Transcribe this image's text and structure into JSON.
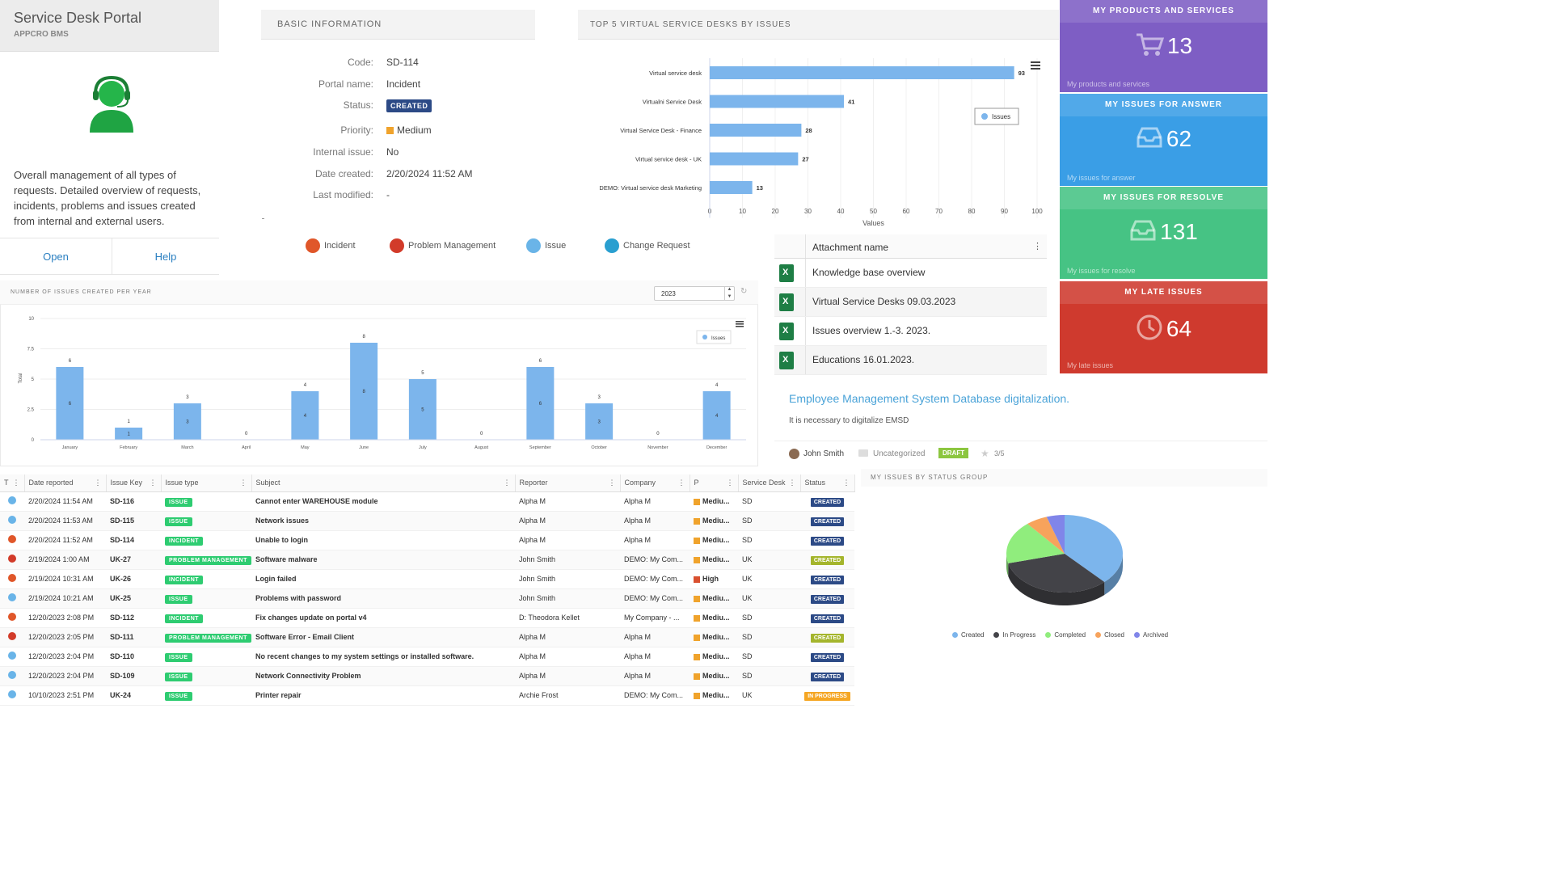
{
  "portal": {
    "title": "Service Desk Portal",
    "subtitle": "APPCRO BMS",
    "description": "Overall management of all types of requests. Detailed overview of requests, incidents, problems and issues created from internal and external users.",
    "open_label": "Open",
    "help_label": "Help",
    "avatar_icon": "support-agent-icon"
  },
  "basic_info": {
    "heading": "BASIC INFORMATION",
    "fields": [
      {
        "label": "Code:",
        "value": "SD-114"
      },
      {
        "label": "Portal name:",
        "value": "Incident"
      },
      {
        "label": "Status:",
        "value": "CREATED"
      },
      {
        "label": "Priority:",
        "value": "Medium"
      },
      {
        "label": "Internal issue:",
        "value": "No"
      },
      {
        "label": "Date created:",
        "value": "2/20/2024 11:52 AM"
      },
      {
        "label": "Last modified:",
        "value": "-"
      }
    ]
  },
  "quick_links": [
    {
      "label": "Incident",
      "icon": "incident-icon",
      "color": "#e0572a"
    },
    {
      "label": "Problem Management",
      "icon": "problem-icon",
      "color": "#d23b2a"
    },
    {
      "label": "Issue",
      "icon": "issue-icon",
      "color": "#6ab4e8"
    },
    {
      "label": "Change Request",
      "icon": "change-request-icon",
      "color": "#2a9fd0"
    }
  ],
  "top5": {
    "heading": "TOP 5 VIRTUAL SERVICE DESKS BY ISSUES",
    "chart_data": {
      "type": "bar",
      "orientation": "horizontal",
      "categories": [
        "Virtual service desk",
        "Virtualni Service Desk",
        "Virtual Service Desk - Finance",
        "Virtual service desk - UK",
        "DEMO: Virtual service desk Marketing"
      ],
      "series": [
        {
          "name": "Issues",
          "values": [
            93,
            41,
            28,
            27,
            13
          ]
        }
      ],
      "xlabel": "Values",
      "xlim": [
        0,
        100
      ],
      "xticks": [
        0,
        10,
        20,
        30,
        40,
        50,
        60,
        70,
        80,
        90,
        100
      ],
      "legend": "right",
      "color": "#7cb5ec"
    }
  },
  "kpis": [
    {
      "title": "MY PRODUCTS AND SERVICES",
      "value": "13",
      "footer": "My products and services",
      "icon": "cart-icon",
      "color": "#7e5ec4"
    },
    {
      "title": "MY ISSUES FOR ANSWER",
      "value": "62",
      "footer": "My issues for answer",
      "icon": "inbox-icon",
      "color": "#3a9ee6"
    },
    {
      "title": "MY ISSUES FOR RESOLVE",
      "value": "131",
      "footer": "My issues for resolve",
      "icon": "inbox-icon",
      "color": "#46c384"
    },
    {
      "title": "MY LATE ISSUES",
      "value": "64",
      "footer": "My late issues",
      "icon": "clock-icon",
      "color": "#cf3a2e"
    }
  ],
  "attachments": {
    "header": "Attachment name",
    "items": [
      "Knowledge base overview",
      "Virtual Service Desks 09.03.2023",
      "Issues overview 1.-3. 2023.",
      "Educations 16.01.2023."
    ]
  },
  "kb": {
    "title": "Employee Management System Database digitalization.",
    "text": "It is necessary to digitalize EMSD",
    "author": "John Smith",
    "category": "Uncategorized",
    "state": "DRAFT",
    "rating": "3/5"
  },
  "yearly": {
    "heading": "NUMBER OF ISSUES CREATED PER YEAR",
    "year": "2023",
    "chart_data": {
      "type": "bar",
      "categories": [
        "January",
        "February",
        "March",
        "April",
        "May",
        "June",
        "July",
        "August",
        "September",
        "October",
        "November",
        "December"
      ],
      "series": [
        {
          "name": "Issues",
          "values": [
            6,
            1,
            3,
            0,
            4,
            8,
            5,
            0,
            6,
            3,
            0,
            4
          ]
        }
      ],
      "ylabel": "Total",
      "ylim": [
        0,
        10
      ],
      "yticks": [
        "0",
        "2.5",
        "5",
        "7.5",
        "10"
      ],
      "legend": "top-right",
      "color": "#7cb5ec"
    }
  },
  "grid": {
    "columns": [
      "T",
      "Date reported",
      "Issue Key",
      "Issue type",
      "Subject",
      "Reporter",
      "Company",
      "P",
      "Service Desk",
      "Status"
    ],
    "rows": [
      {
        "icon": "issue",
        "date": "2/20/2024 11:54 AM",
        "key": "SD-116",
        "type": "ISSUE",
        "subject": "Cannot enter WAREHOUSE module",
        "reporter": "Alpha M",
        "company": "Alpha M",
        "priority": "Mediu...",
        "desk": "SD",
        "status": "CREATED"
      },
      {
        "icon": "issue",
        "date": "2/20/2024 11:53 AM",
        "key": "SD-115",
        "type": "ISSUE",
        "subject": "Network issues",
        "reporter": "Alpha M",
        "company": "Alpha M",
        "priority": "Mediu...",
        "desk": "SD",
        "status": "CREATED"
      },
      {
        "icon": "incident",
        "date": "2/20/2024 11:52 AM",
        "key": "SD-114",
        "type": "INCIDENT",
        "subject": "Unable to login",
        "reporter": "Alpha M",
        "company": "Alpha M",
        "priority": "Mediu...",
        "desk": "SD",
        "status": "CREATED"
      },
      {
        "icon": "problem",
        "date": "2/19/2024 1:00 AM",
        "key": "UK-27",
        "type": "PROBLEM MANAGEMENT",
        "subject": "Software malware",
        "reporter": "John Smith",
        "company": "DEMO: My Com...",
        "priority": "Mediu...",
        "desk": "UK",
        "status": "CREATED"
      },
      {
        "icon": "incident",
        "date": "2/19/2024 10:31 AM",
        "key": "UK-26",
        "type": "INCIDENT",
        "subject": "Login failed",
        "reporter": "John Smith",
        "company": "DEMO: My Com...",
        "priority": "High",
        "desk": "UK",
        "status": "CREATED"
      },
      {
        "icon": "issue",
        "date": "2/19/2024 10:21 AM",
        "key": "UK-25",
        "type": "ISSUE",
        "subject": "Problems with password",
        "reporter": "John Smith",
        "company": "DEMO: My Com...",
        "priority": "Mediu...",
        "desk": "UK",
        "status": "CREATED"
      },
      {
        "icon": "incident",
        "date": "12/20/2023 2:08 PM",
        "key": "SD-112",
        "type": "INCIDENT",
        "subject": "Fix changes update on portal v4",
        "reporter": "D: Theodora Kellet",
        "company": "My Company - ...",
        "priority": "Mediu...",
        "desk": "SD",
        "status": "CREATED"
      },
      {
        "icon": "problem",
        "date": "12/20/2023 2:05 PM",
        "key": "SD-111",
        "type": "PROBLEM MANAGEMENT",
        "subject": "Software Error - Email Client",
        "reporter": "Alpha M",
        "company": "Alpha M",
        "priority": "Mediu...",
        "desk": "SD",
        "status": "CREATED"
      },
      {
        "icon": "issue",
        "date": "12/20/2023 2:04 PM",
        "key": "SD-110",
        "type": "ISSUE",
        "subject": "No recent changes to my system settings or installed software.",
        "reporter": "Alpha M",
        "company": "Alpha M",
        "priority": "Mediu...",
        "desk": "SD",
        "status": "CREATED"
      },
      {
        "icon": "issue",
        "date": "12/20/2023 2:04 PM",
        "key": "SD-109",
        "type": "ISSUE",
        "subject": "Network Connectivity Problem",
        "reporter": "Alpha M",
        "company": "Alpha M",
        "priority": "Mediu...",
        "desk": "SD",
        "status": "CREATED"
      },
      {
        "icon": "issue",
        "date": "10/10/2023 2:51 PM",
        "key": "UK-24",
        "type": "ISSUE",
        "subject": "Printer repair",
        "reporter": "Archie Frost",
        "company": "DEMO: My Com...",
        "priority": "Mediu...",
        "desk": "UK",
        "status": "IN PROGRESS"
      }
    ]
  },
  "status_group": {
    "heading": "MY ISSUES BY STATUS GROUP",
    "chart_data": {
      "type": "pie",
      "categories": [
        "Created",
        "In Progress",
        "Completed",
        "Closed",
        "Archived"
      ],
      "values": [
        38,
        33,
        18,
        6,
        5
      ],
      "colors": [
        "#7cb5ec",
        "#434348",
        "#90ed7d",
        "#f7a35c",
        "#8085e9"
      ],
      "legend": "bottom"
    }
  },
  "colors": {
    "issue_badge": "#2ecc71",
    "incident_badge": "#2ecc71",
    "status_created": "#2c4a86",
    "status_created_green": "#a4b52c",
    "status_in_progress": "#f5a623",
    "priority_medium": "#f0a32c",
    "priority_high": "#d9502f"
  }
}
